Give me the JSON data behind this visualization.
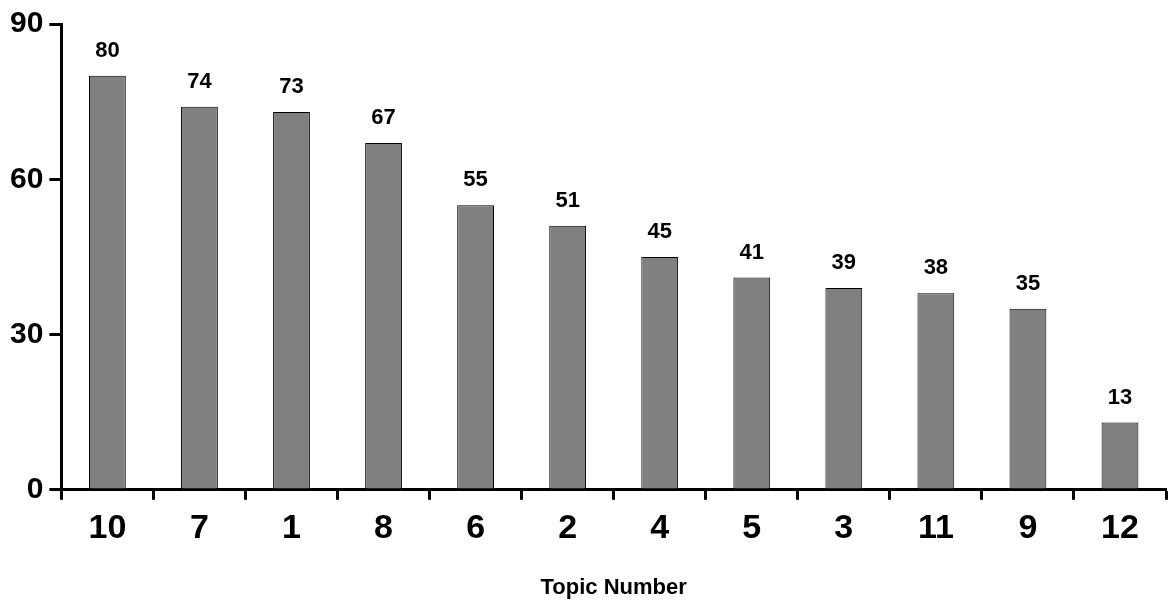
{
  "chart_data": {
    "type": "bar",
    "xlabel": "Topic Number",
    "categories": [
      "10",
      "7",
      "1",
      "8",
      "6",
      "2",
      "4",
      "5",
      "3",
      "11",
      "9",
      "12"
    ],
    "values": [
      80,
      74,
      73,
      67,
      55,
      51,
      45,
      41,
      39,
      38,
      35,
      13
    ],
    "color": "#808080",
    "ylim": [
      0,
      90
    ],
    "yticks": [
      0,
      30,
      60,
      90
    ],
    "grid": false,
    "legend": false,
    "data_labels": true
  }
}
